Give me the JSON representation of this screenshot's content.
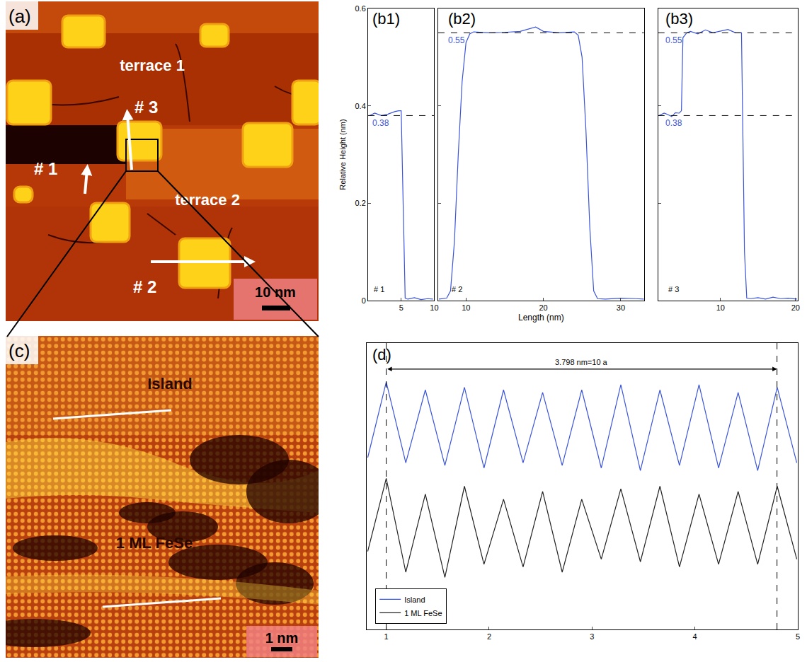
{
  "images": [
    {
      "panel": "(a)",
      "labels": [
        "terrace 1",
        "terrace 2"
      ],
      "arrows": [
        "# 1",
        "# 2",
        "# 3"
      ],
      "scale_bar": "10 nm"
    },
    {
      "panel": "(c)",
      "labels": [
        "Island",
        "1 ML FeSe"
      ],
      "scale_bar": "1 nm"
    }
  ],
  "chart_data": [
    {
      "type": "line",
      "ylabel": "Relative Height (nm)",
      "xlabel": "Length (nm)",
      "ylim": [
        0,
        0.6
      ],
      "yticks": [
        0,
        0.2,
        0.4,
        0.6
      ],
      "color": "#3b55d9",
      "panels": [
        {
          "title": "(b1)",
          "label": "# 1",
          "xlim": [
            0,
            10
          ],
          "xticks": [
            5,
            10
          ],
          "x": [
            0.2,
            1,
            2,
            3,
            4,
            4.6,
            5.0,
            5.3,
            5.6,
            6,
            7,
            8,
            9,
            9.8
          ],
          "values": [
            0.38,
            0.385,
            0.38,
            0.383,
            0.388,
            0.39,
            0.39,
            0.2,
            0.005,
            0.003,
            0.006,
            0.002,
            0.004,
            0.003
          ],
          "reference_lines": [
            {
              "y": 0.38,
              "label": "0.38"
            }
          ]
        },
        {
          "title": "(b2)",
          "label": "# 2",
          "xlim": [
            6.4,
            33
          ],
          "xticks": [
            10,
            20,
            30
          ],
          "x": [
            6.5,
            7,
            7.5,
            8,
            8.5,
            9,
            9.5,
            10,
            10.5,
            11,
            13,
            15,
            17,
            19,
            20,
            22,
            24,
            24.5,
            25,
            25.5,
            26,
            26.5,
            27,
            28,
            30,
            32,
            33
          ],
          "values": [
            0.003,
            0.004,
            0.005,
            0.02,
            0.12,
            0.3,
            0.45,
            0.53,
            0.548,
            0.552,
            0.55,
            0.551,
            0.553,
            0.562,
            0.553,
            0.55,
            0.552,
            0.545,
            0.5,
            0.35,
            0.15,
            0.02,
            0.004,
            0.003,
            0.005,
            0.004,
            0.003
          ],
          "reference_lines": [
            {
              "y": 0.55,
              "label": "0.55"
            }
          ]
        },
        {
          "title": "(b3)",
          "label": "# 3",
          "xlim": [
            1.7,
            20.3
          ],
          "xticks": [
            10,
            20
          ],
          "x": [
            1.8,
            2.5,
            3,
            3.5,
            4,
            4.5,
            4.8,
            5.0,
            5.5,
            6,
            7,
            8,
            9,
            10,
            11,
            12,
            12.8,
            13.2,
            13.5,
            14,
            15,
            16,
            17,
            18,
            19,
            20.2
          ],
          "values": [
            0.38,
            0.385,
            0.382,
            0.378,
            0.386,
            0.385,
            0.39,
            0.54,
            0.55,
            0.553,
            0.548,
            0.556,
            0.55,
            0.553,
            0.557,
            0.55,
            0.55,
            0.1,
            0.005,
            0.004,
            0.006,
            0.003,
            0.007,
            0.004,
            0.005,
            0.003
          ],
          "reference_lines": [
            {
              "y": 0.55,
              "label": "0.55"
            },
            {
              "y": 0.38,
              "label": "0.38"
            }
          ]
        }
      ]
    },
    {
      "type": "line",
      "title": "(d)",
      "xlim": [
        0.81,
        5
      ],
      "xticks": [
        1,
        2,
        3,
        4,
        5
      ],
      "ylim": [
        0,
        1.1
      ],
      "tick_labels": "x",
      "legend": "lower left",
      "x": [
        0.82,
        1.0,
        1.19,
        1.38,
        1.57,
        1.76,
        1.95,
        2.14,
        2.33,
        2.52,
        2.71,
        2.9,
        3.09,
        3.28,
        3.47,
        3.66,
        3.85,
        4.04,
        4.23,
        4.42,
        4.61,
        4.8,
        4.99
      ],
      "series": [
        {
          "name": "Island",
          "color": "#3b55d9",
          "values": [
            0.66,
            0.95,
            0.64,
            0.92,
            0.63,
            0.93,
            0.62,
            0.92,
            0.64,
            0.91,
            0.63,
            0.92,
            0.62,
            0.94,
            0.61,
            0.92,
            0.63,
            0.94,
            0.62,
            0.91,
            0.61,
            0.93,
            0.64
          ]
        },
        {
          "name": "1 ML FeSe",
          "color": "#222222",
          "values": [
            0.3,
            0.58,
            0.22,
            0.52,
            0.2,
            0.55,
            0.25,
            0.5,
            0.24,
            0.53,
            0.22,
            0.5,
            0.27,
            0.54,
            0.26,
            0.55,
            0.24,
            0.52,
            0.25,
            0.53,
            0.25,
            0.55,
            0.27
          ]
        }
      ],
      "span": {
        "from": 1,
        "to": 4.798,
        "label": "3.798 nm=10 a",
        "y": 1.0
      }
    }
  ]
}
